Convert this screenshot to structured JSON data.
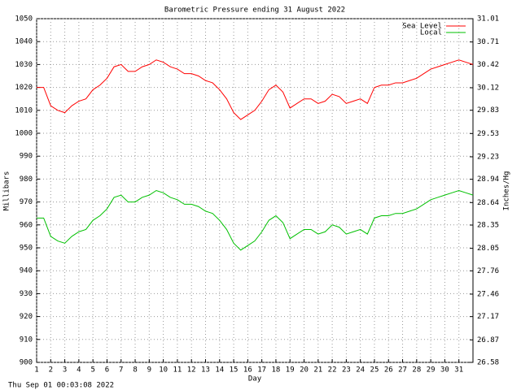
{
  "chart_data": {
    "type": "line",
    "title": "Barometric Pressure ending 31 August 2022",
    "xlabel": "Day",
    "ylabel": "Millibars",
    "y2label": "Inches/Hg",
    "footer": "Thu Sep 01 00:03:08 2022",
    "xlim": [
      1,
      32
    ],
    "xticks": [
      1,
      2,
      3,
      4,
      5,
      6,
      7,
      8,
      9,
      10,
      11,
      12,
      13,
      14,
      15,
      16,
      17,
      18,
      19,
      20,
      21,
      22,
      23,
      24,
      25,
      26,
      27,
      28,
      29,
      30,
      31
    ],
    "ylim": [
      900,
      1050
    ],
    "yticks": [
      900,
      910,
      920,
      930,
      940,
      950,
      960,
      970,
      980,
      990,
      1000,
      1010,
      1020,
      1030,
      1040,
      1050
    ],
    "y2lim": [
      26.58,
      31.01
    ],
    "y2ticks": [
      26.58,
      26.87,
      27.17,
      27.46,
      27.76,
      28.05,
      28.35,
      28.64,
      28.94,
      29.23,
      29.53,
      29.83,
      30.12,
      30.42,
      30.71,
      31.01
    ],
    "grid": true,
    "legend": "upper right",
    "x": [
      1,
      1.5,
      2,
      2.5,
      3,
      3.5,
      4,
      4.5,
      5,
      5.5,
      6,
      6.5,
      7,
      7.5,
      8,
      8.5,
      9,
      9.5,
      10,
      10.5,
      11,
      11.5,
      12,
      12.5,
      13,
      13.5,
      14,
      14.5,
      15,
      15.5,
      16,
      16.5,
      17,
      17.5,
      18,
      18.5,
      19,
      19.5,
      20,
      20.5,
      21,
      21.5,
      22,
      22.5,
      23,
      23.5,
      24,
      24.5,
      25,
      25.5,
      26,
      26.5,
      27,
      27.5,
      28,
      28.5,
      29,
      29.5,
      30,
      30.5,
      31,
      31.5,
      32
    ],
    "series": [
      {
        "name": "Sea Level",
        "color": "#ff0000",
        "values": [
          1020,
          1020,
          1012,
          1010,
          1009,
          1012,
          1014,
          1015,
          1019,
          1021,
          1024,
          1029,
          1030,
          1027,
          1027,
          1029,
          1030,
          1032,
          1031,
          1029,
          1028,
          1026,
          1026,
          1025,
          1023,
          1022,
          1019,
          1015,
          1009,
          1006,
          1008,
          1010,
          1014,
          1019,
          1021,
          1018,
          1011,
          1013,
          1015,
          1015,
          1013,
          1014,
          1017,
          1016,
          1013,
          1014,
          1015,
          1013,
          1020,
          1021,
          1021,
          1022,
          1022,
          1023,
          1024,
          1026,
          1028,
          1029,
          1030,
          1031,
          1032,
          1031,
          1030
        ]
      },
      {
        "name": "Local",
        "color": "#00c000",
        "values": [
          963,
          963,
          955,
          953,
          952,
          955,
          957,
          958,
          962,
          964,
          967,
          972,
          973,
          970,
          970,
          972,
          973,
          975,
          974,
          972,
          971,
          969,
          969,
          968,
          966,
          965,
          962,
          958,
          952,
          949,
          951,
          953,
          957,
          962,
          964,
          961,
          954,
          956,
          958,
          958,
          956,
          957,
          960,
          959,
          956,
          957,
          958,
          956,
          963,
          964,
          964,
          965,
          965,
          966,
          967,
          969,
          971,
          972,
          973,
          974,
          975,
          974,
          973
        ]
      }
    ]
  }
}
